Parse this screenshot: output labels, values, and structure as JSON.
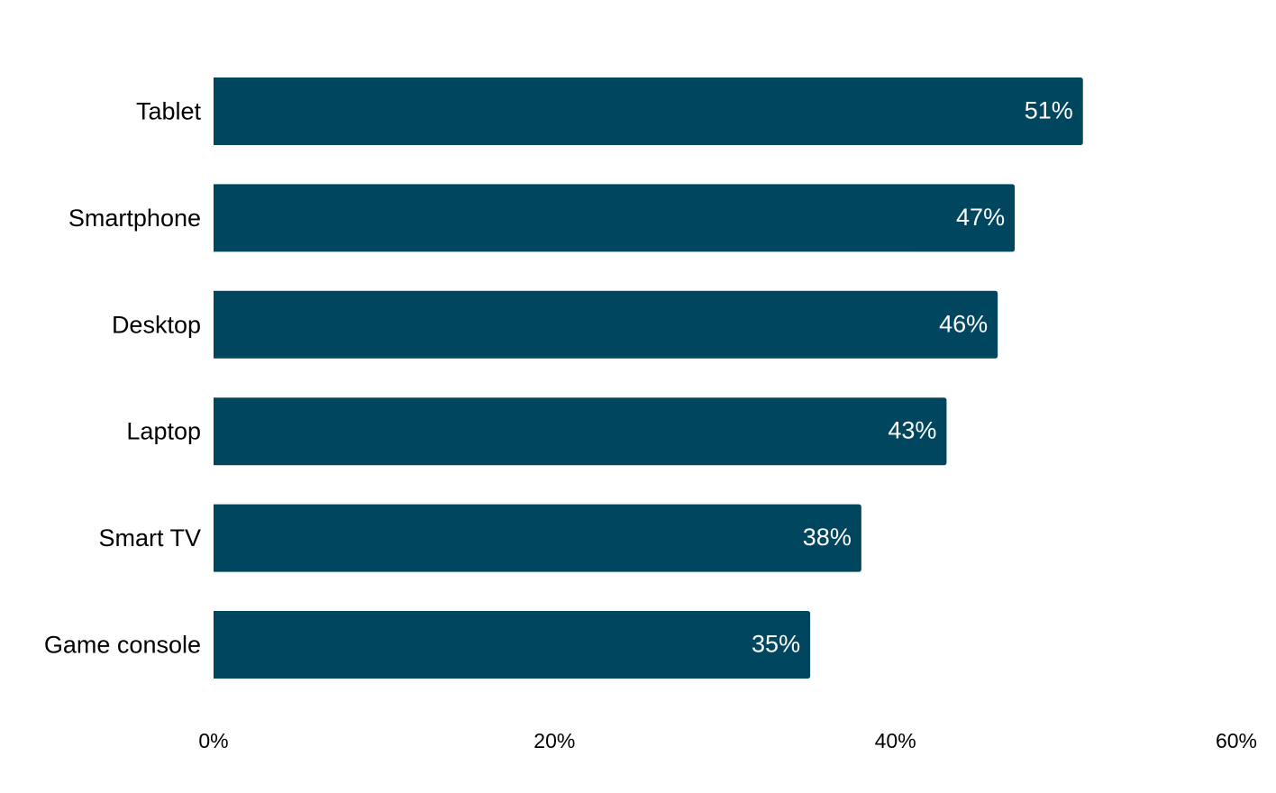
{
  "chart_data": {
    "type": "bar",
    "orientation": "horizontal",
    "title": "",
    "xlabel": "",
    "ylabel": "",
    "categories": [
      "Tablet",
      "Smartphone",
      "Desktop",
      "Laptop",
      "Smart TV",
      "Game console"
    ],
    "values": [
      51,
      47,
      46,
      43,
      38,
      35
    ],
    "value_labels": [
      "51%",
      "47%",
      "46%",
      "43%",
      "38%",
      "35%"
    ],
    "xlim": [
      0,
      60
    ],
    "x_ticks": [
      0,
      20,
      40,
      60
    ],
    "x_tick_labels": [
      "0%",
      "20%",
      "40%",
      "60%"
    ],
    "grid": false,
    "legend": "none",
    "bar_color": "#00465f",
    "value_label_color": "#ffffff"
  }
}
